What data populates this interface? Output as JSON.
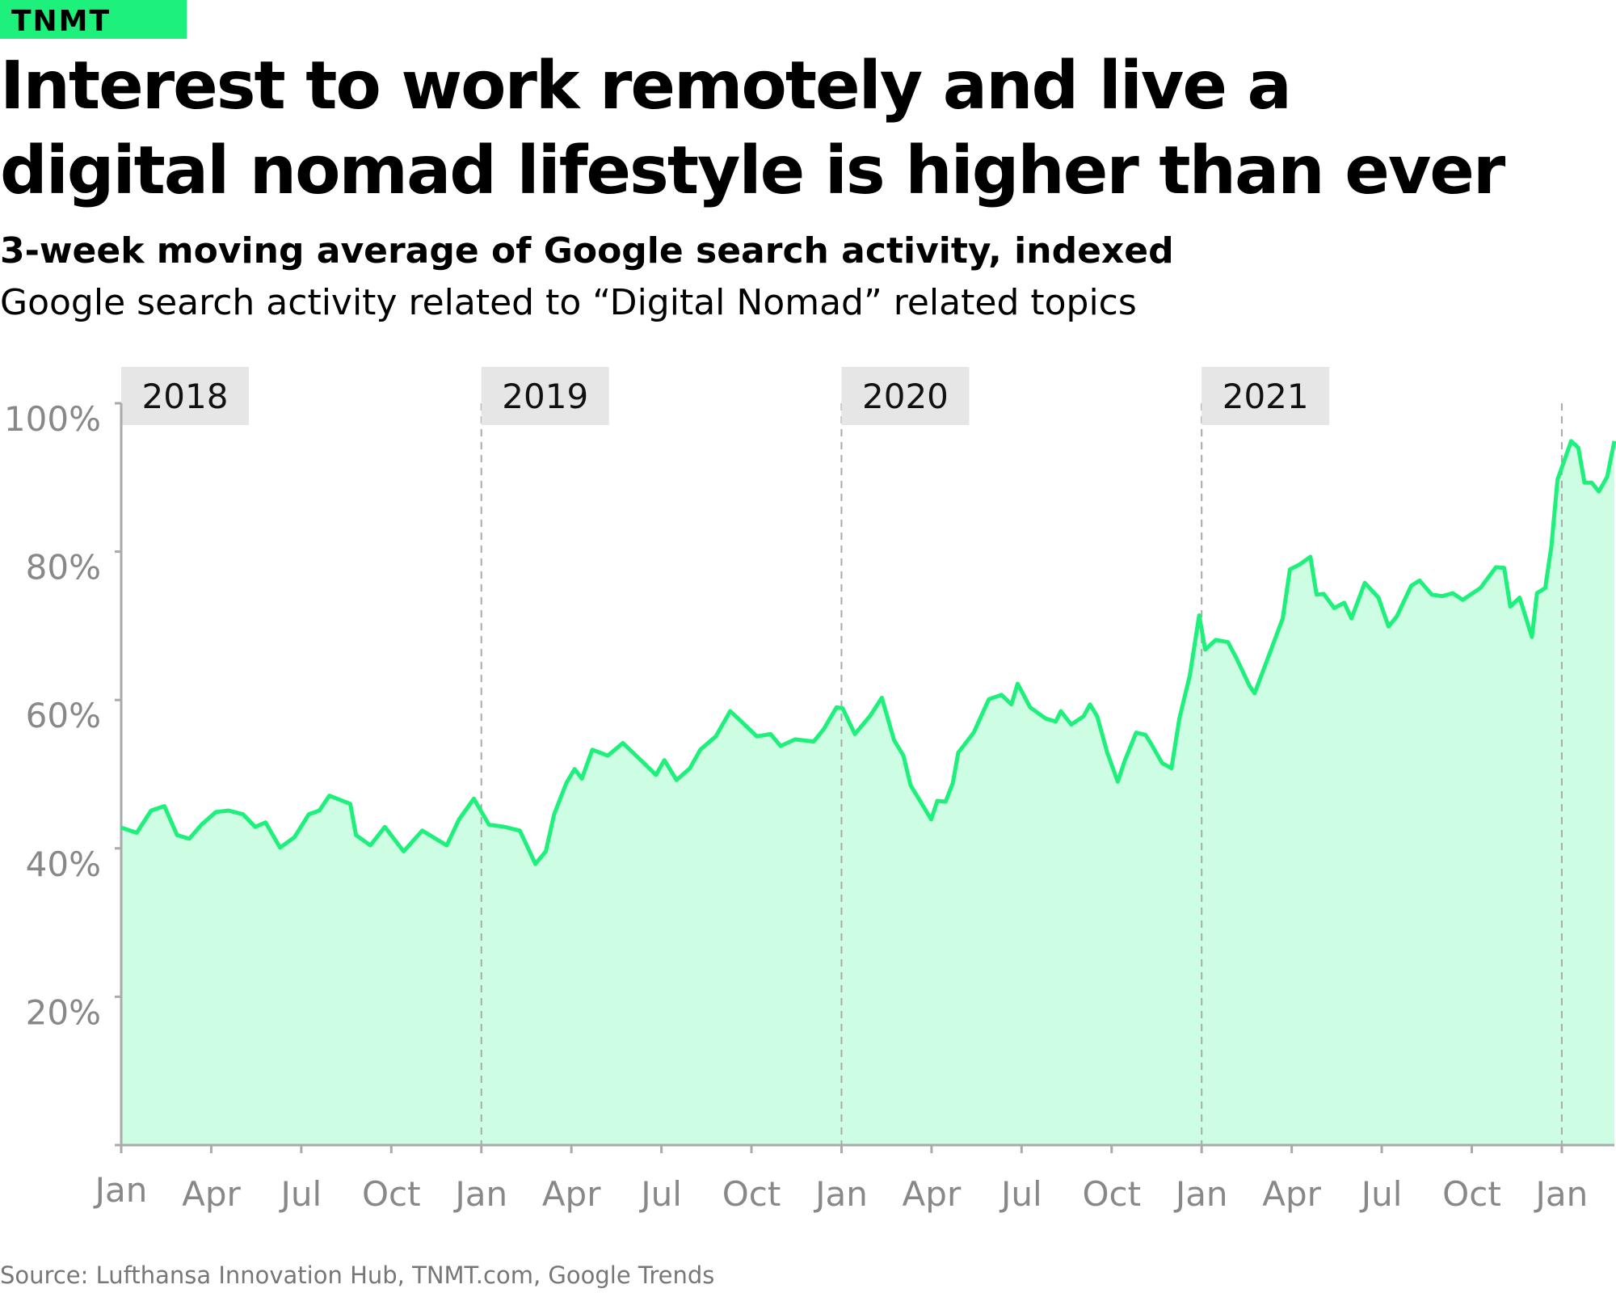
{
  "brand": "TNMT",
  "chart_data": {
    "type": "area",
    "title": "Interest to work remotely and live a digital nomad lifestyle is higher than ever",
    "subtitle": "3-week moving average of Google search activity, indexed",
    "description": "Google search activity related to “Digital Nomad” related topics",
    "source": "Source: Lufthansa Innovation Hub, TNMT.com, Google Trends",
    "color": "#1ef07c",
    "fill_color": "#cdfde3",
    "x": [
      2018,
      2018.043,
      2018.083,
      2018.12,
      2018.155,
      2018.189,
      2018.223,
      2018.263,
      2018.298,
      2018.338,
      2018.372,
      2018.401,
      2018.441,
      2018.481,
      2018.521,
      2018.55,
      2018.578,
      2018.636,
      2018.652,
      2018.692,
      2018.732,
      2018.784,
      2018.836,
      2018.904,
      2018.938,
      2018.979,
      2019.021,
      2019.064,
      2019.107,
      2019.15,
      2019.179,
      2019.202,
      2019.236,
      2019.259,
      2019.279,
      2019.308,
      2019.351,
      2019.393,
      2019.451,
      2019.485,
      2019.508,
      2019.542,
      2019.579,
      2019.608,
      2019.651,
      2019.691,
      2019.722,
      2019.765,
      2019.803,
      2019.831,
      2019.871,
      2019.923,
      2019.951,
      2019.986,
      2020.003,
      2020.037,
      2020.08,
      2020.112,
      2020.146,
      2020.172,
      2020.192,
      2020.223,
      2020.249,
      2020.266,
      2020.289,
      2020.309,
      2020.324,
      2020.367,
      2020.409,
      2020.444,
      2020.472,
      2020.489,
      2020.524,
      2020.567,
      2020.595,
      2020.609,
      2020.638,
      2020.672,
      2020.69,
      2020.71,
      2020.738,
      2020.767,
      2020.787,
      2020.818,
      2020.844,
      2020.861,
      2020.89,
      2020.916,
      2020.938,
      2020.967,
      2020.993,
      2021.01,
      2021.039,
      2021.073,
      2021.096,
      2021.133,
      2021.147,
      2021.182,
      2021.225,
      2021.245,
      2021.273,
      2021.302,
      2021.319,
      2021.339,
      2021.368,
      2021.396,
      2021.416,
      2021.453,
      2021.491,
      2021.519,
      2021.542,
      2021.582,
      2021.605,
      2021.639,
      2021.668,
      2021.697,
      2021.725,
      2021.774,
      2021.817,
      2021.84,
      2021.857,
      2021.883,
      2021.917,
      2021.931,
      2021.954,
      2021.971,
      2021.988,
      2022.026,
      2022.046,
      2022.063,
      2022.083,
      2022.103,
      2022.126,
      2022.146
    ],
    "values": [
      42.8,
      42.1,
      45.1,
      45.7,
      41.8,
      41.3,
      43.2,
      44.9,
      45.1,
      44.6,
      42.9,
      43.5,
      40.1,
      41.5,
      44.6,
      45.1,
      47.1,
      46,
      41.8,
      40.4,
      42.9,
      39.6,
      42.4,
      40.4,
      43.9,
      46.7,
      43.2,
      42.9,
      42.4,
      37.9,
      39.6,
      44.6,
      48.8,
      50.7,
      49.4,
      53.3,
      52.5,
      54.2,
      51.5,
      49.9,
      51.9,
      49.2,
      50.8,
      53.3,
      55.1,
      58.5,
      57.1,
      55.1,
      55.4,
      53.8,
      54.7,
      54.4,
      56.1,
      59,
      58.9,
      55.4,
      57.9,
      60.3,
      54.6,
      52.5,
      48.5,
      46,
      43.9,
      46.4,
      46.3,
      48.8,
      52.9,
      55.6,
      60.1,
      60.7,
      59.4,
      62.2,
      59,
      57.5,
      57.1,
      58.5,
      56.7,
      57.8,
      59.4,
      57.8,
      52.9,
      49,
      51.9,
      55.6,
      55.3,
      54,
      51.5,
      50.8,
      57.5,
      63.3,
      71.4,
      66.8,
      68.1,
      67.8,
      65.7,
      61.9,
      60.9,
      65.4,
      71,
      77.6,
      78.3,
      79.3,
      74.2,
      74.3,
      72.4,
      73.1,
      71,
      75.8,
      73.8,
      69.9,
      71.3,
      75.4,
      76.1,
      74.2,
      74,
      74.4,
      73.5,
      75.1,
      77.9,
      77.8,
      72.6,
      73.8,
      68.5,
      74.4,
      75.1,
      80.7,
      89.7,
      94.9,
      94,
      89.3,
      89.3,
      88.1,
      90.1,
      94.9
    ],
    "xlim": [
      2018,
      2022.146
    ],
    "xticks": [
      {
        "value": 2018,
        "label": "Jan"
      },
      {
        "value": 2018.25,
        "label": "Apr"
      },
      {
        "value": 2018.5,
        "label": "Jul"
      },
      {
        "value": 2018.75,
        "label": "Oct"
      },
      {
        "value": 2019,
        "label": "Jan"
      },
      {
        "value": 2019.25,
        "label": "Apr"
      },
      {
        "value": 2019.5,
        "label": "Jul"
      },
      {
        "value": 2019.75,
        "label": "Oct"
      },
      {
        "value": 2020,
        "label": "Jan"
      },
      {
        "value": 2020.25,
        "label": "Apr"
      },
      {
        "value": 2020.5,
        "label": "Jul"
      },
      {
        "value": 2020.75,
        "label": "Oct"
      },
      {
        "value": 2021,
        "label": "Jan"
      },
      {
        "value": 2021.25,
        "label": "Apr"
      },
      {
        "value": 2021.5,
        "label": "Jul"
      },
      {
        "value": 2021.75,
        "label": "Oct"
      },
      {
        "value": 2022,
        "label": "Jan"
      }
    ],
    "ylim": [
      0,
      100
    ],
    "yticks": [
      {
        "value": 20,
        "label": "20%"
      },
      {
        "value": 40,
        "label": "40%"
      },
      {
        "value": 60,
        "label": "60%"
      },
      {
        "value": 80,
        "label": "80%"
      },
      {
        "value": 100,
        "label": "100%"
      }
    ],
    "year_labels": [
      2018,
      2019,
      2020,
      2021
    ],
    "year_lines": [
      2019,
      2020,
      2021,
      2022
    ]
  }
}
